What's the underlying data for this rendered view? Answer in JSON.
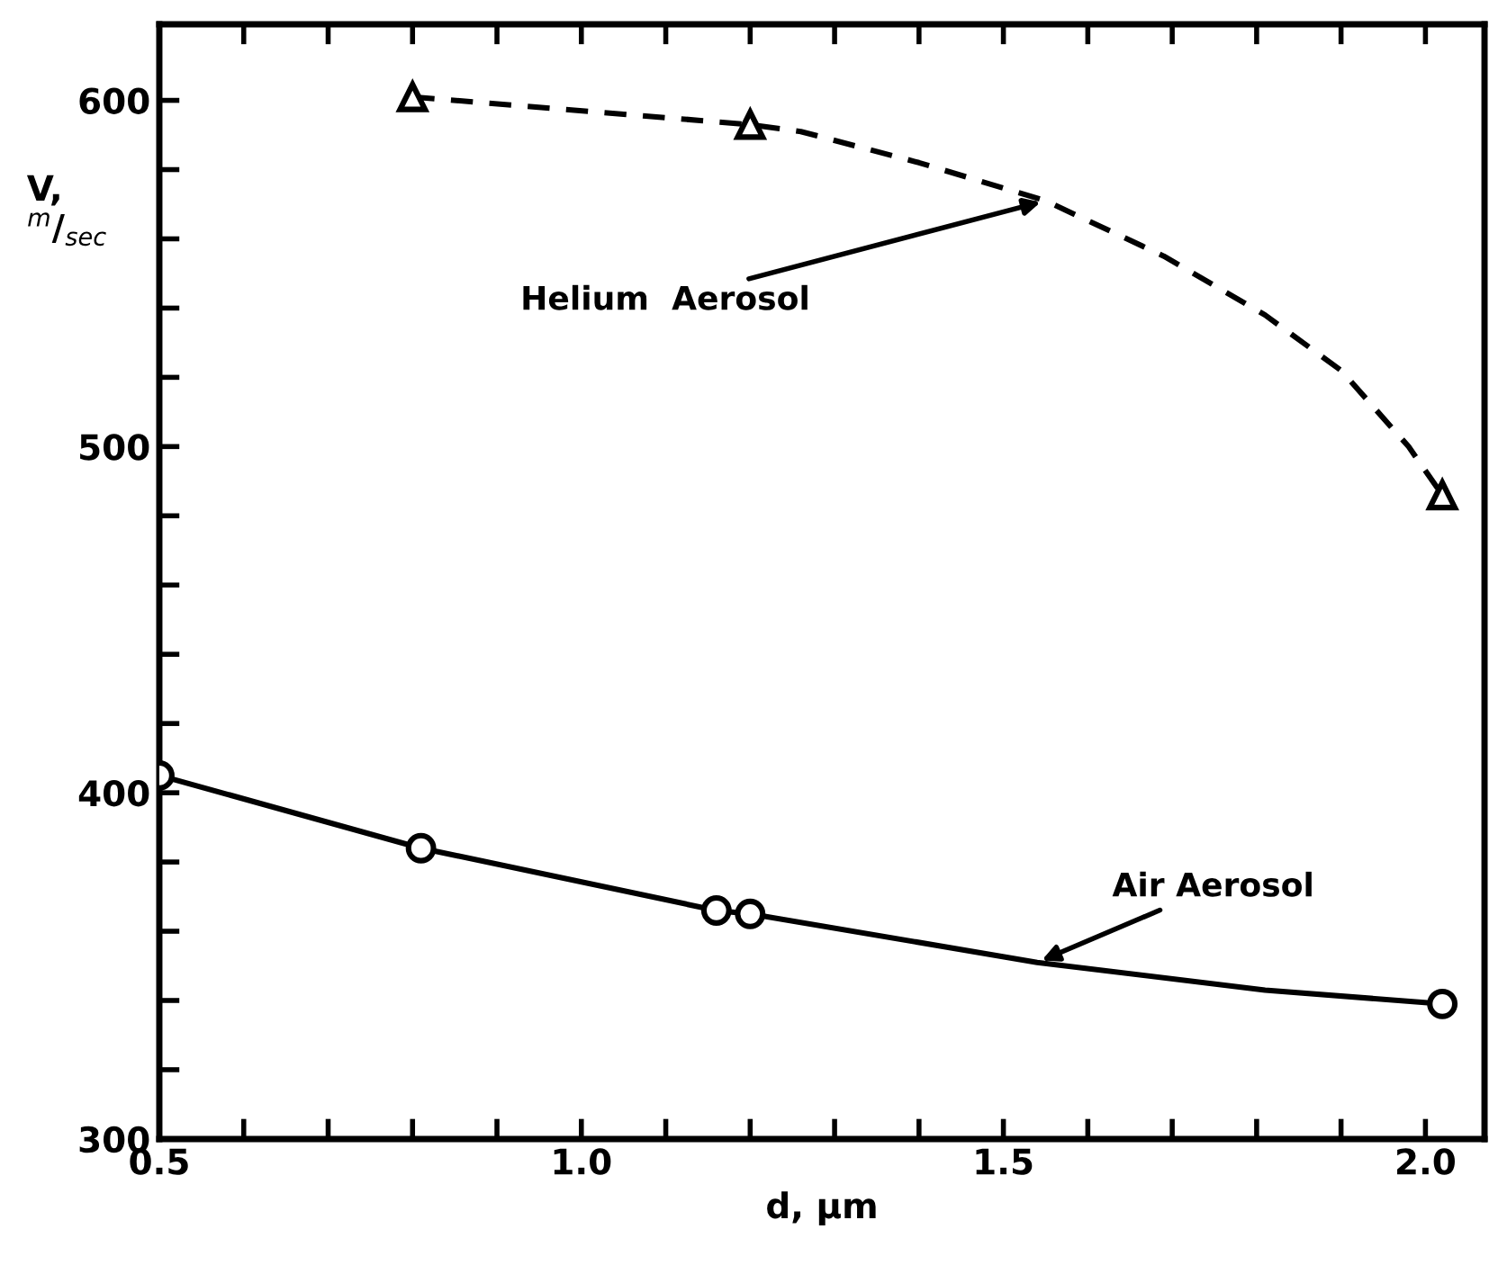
{
  "chart_data": {
    "type": "line",
    "xlabel": "d, µm",
    "ylabel": "V,\n$^{m}$/$_{sec}$",
    "xlim": [
      0.5,
      2.07
    ],
    "ylim": [
      300,
      622
    ],
    "xticks": [
      0.5,
      {
        "value": 0.6,
        "label": null
      },
      {
        "value": 0.7,
        "label": null
      },
      {
        "value": 0.8,
        "label": null
      },
      {
        "value": 0.9,
        "label": null
      },
      {
        "value": 1.0,
        "label": "1.0"
      },
      {
        "value": 1.1,
        "label": null
      },
      {
        "value": 1.2,
        "label": null
      },
      {
        "value": 1.3,
        "label": null
      },
      {
        "value": 1.4,
        "label": null
      },
      1.5,
      {
        "value": 1.6,
        "label": null
      },
      {
        "value": 1.7,
        "label": null
      },
      {
        "value": 1.8,
        "label": null
      },
      {
        "value": 1.9,
        "label": null
      },
      {
        "value": 2.0,
        "label": "2.0"
      }
    ],
    "yticks": [
      300,
      {
        "value": 320,
        "label": null
      },
      {
        "value": 340,
        "label": null
      },
      {
        "value": 360,
        "label": null
      },
      {
        "value": 380,
        "label": null
      },
      400,
      {
        "value": 420,
        "label": null
      },
      {
        "value": 440,
        "label": null
      },
      {
        "value": 460,
        "label": null
      },
      {
        "value": 480,
        "label": null
      },
      500,
      {
        "value": 520,
        "label": null
      },
      {
        "value": 540,
        "label": null
      },
      {
        "value": 560,
        "label": null
      },
      {
        "value": 580,
        "label": null
      },
      600
    ],
    "grid": false,
    "legend": false,
    "series": [
      {
        "color": "#000000",
        "line_style": "dashed",
        "marker": "none",
        "x": [
          0.8,
          1.2,
          1.26,
          1.4,
          1.55,
          1.69,
          1.81,
          1.9,
          1.98,
          2.02
        ],
        "values": [
          601,
          593,
          591,
          582,
          571,
          555,
          538,
          522,
          500,
          486
        ]
      },
      {
        "type": "scatter",
        "color": "#000000",
        "marker": "triangle",
        "x": [
          0.8,
          1.2,
          2.02
        ],
        "values": [
          601,
          593,
          486
        ]
      },
      {
        "color": "#000000",
        "line_style": "solid",
        "marker": "none",
        "x": [
          0.5,
          0.81,
          1.16,
          1.2,
          1.54,
          1.81,
          2.02
        ],
        "values": [
          405,
          384,
          366,
          365,
          351,
          343,
          339
        ]
      },
      {
        "type": "scatter",
        "color": "#000000",
        "marker": "circle",
        "x": [
          0.5,
          0.81,
          1.16,
          1.2,
          2.02
        ],
        "values": [
          405,
          384,
          366,
          365,
          339
        ]
      }
    ],
    "annotations": [
      {
        "text": "Helium  Aerosol",
        "x": 1.55,
        "y": 571
      },
      {
        "text": "Air Aerosol",
        "x": 1.54,
        "y": 351
      }
    ]
  }
}
